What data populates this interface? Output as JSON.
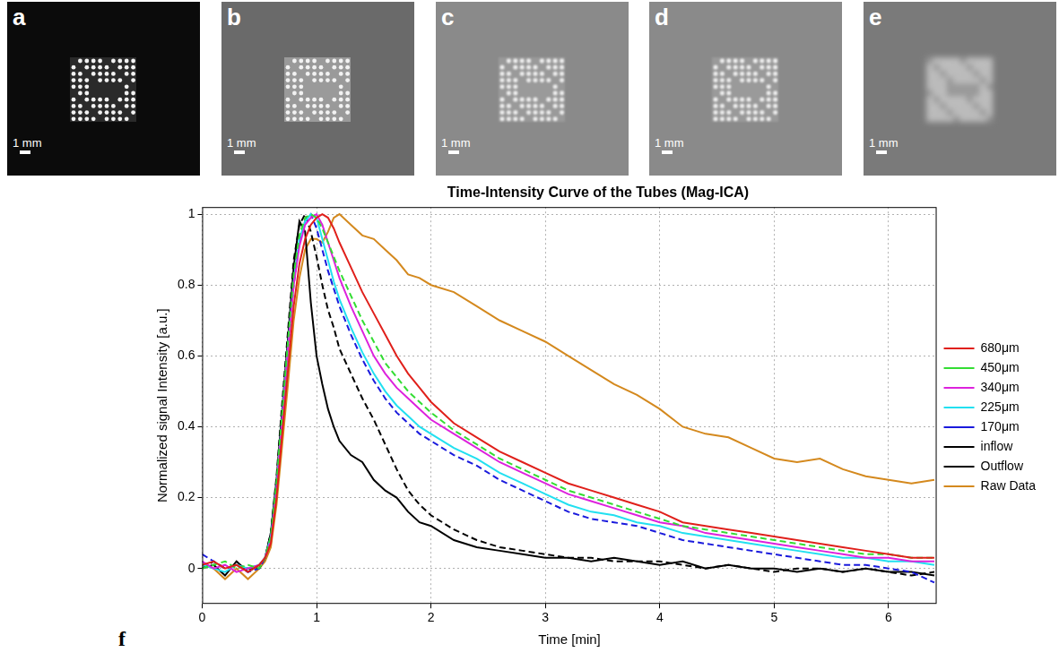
{
  "images": [
    {
      "label": "a",
      "scale_bar": "1 mm"
    },
    {
      "label": "b",
      "scale_bar": "1 mm"
    },
    {
      "label": "c",
      "scale_bar": "1 mm"
    },
    {
      "label": "d",
      "scale_bar": "1 mm"
    },
    {
      "label": "e",
      "scale_bar": "1 mm"
    }
  ],
  "chart_data": {
    "type": "line",
    "panel_label": "f",
    "title": "Time-Intensity Curve of the Tubes (Mag-ICA)",
    "x_label": "Time [min]",
    "y_label": "Normalized signal Intensity [a.u.]",
    "x": [
      0,
      0.1,
      0.2,
      0.3,
      0.4,
      0.5,
      0.55,
      0.6,
      0.65,
      0.7,
      0.75,
      0.8,
      0.85,
      0.9,
      0.95,
      1.0,
      1.05,
      1.1,
      1.15,
      1.2,
      1.3,
      1.4,
      1.5,
      1.6,
      1.7,
      1.8,
      1.9,
      2.0,
      2.2,
      2.4,
      2.6,
      2.8,
      3.0,
      3.2,
      3.4,
      3.6,
      3.8,
      4.0,
      4.2,
      4.4,
      4.6,
      4.8,
      5.0,
      5.2,
      5.4,
      5.6,
      5.8,
      6.0,
      6.2,
      6.4
    ],
    "series": [
      {
        "name": "680μm",
        "color": "#e0201b",
        "line_style": "solid",
        "values": [
          0.01,
          0.02,
          0.0,
          0.01,
          -0.01,
          0.01,
          0.03,
          0.07,
          0.2,
          0.38,
          0.56,
          0.74,
          0.86,
          0.93,
          0.97,
          0.99,
          1.0,
          0.99,
          0.96,
          0.92,
          0.85,
          0.78,
          0.72,
          0.66,
          0.6,
          0.55,
          0.51,
          0.47,
          0.41,
          0.37,
          0.33,
          0.3,
          0.27,
          0.24,
          0.22,
          0.2,
          0.18,
          0.16,
          0.13,
          0.12,
          0.11,
          0.1,
          0.09,
          0.08,
          0.07,
          0.06,
          0.05,
          0.04,
          0.03,
          0.03
        ]
      },
      {
        "name": "450μm",
        "color": "#33dd33",
        "line_style": "dashed",
        "values": [
          0.0,
          0.01,
          0.02,
          0.0,
          0.01,
          0.0,
          0.03,
          0.09,
          0.24,
          0.44,
          0.64,
          0.83,
          0.94,
          0.99,
          1.0,
          0.99,
          0.96,
          0.92,
          0.88,
          0.84,
          0.77,
          0.7,
          0.64,
          0.58,
          0.54,
          0.5,
          0.47,
          0.44,
          0.39,
          0.35,
          0.31,
          0.28,
          0.25,
          0.22,
          0.2,
          0.18,
          0.16,
          0.14,
          0.12,
          0.11,
          0.1,
          0.09,
          0.08,
          0.07,
          0.06,
          0.05,
          0.04,
          0.04,
          0.03,
          0.03
        ]
      },
      {
        "name": "340μm",
        "color": "#dd22dd",
        "line_style": "solid",
        "values": [
          0.02,
          0.0,
          0.01,
          -0.01,
          0.0,
          0.01,
          0.03,
          0.08,
          0.22,
          0.42,
          0.62,
          0.8,
          0.91,
          0.97,
          0.99,
          1.0,
          0.97,
          0.92,
          0.87,
          0.82,
          0.74,
          0.67,
          0.6,
          0.55,
          0.51,
          0.48,
          0.45,
          0.42,
          0.38,
          0.34,
          0.3,
          0.27,
          0.24,
          0.21,
          0.19,
          0.17,
          0.15,
          0.13,
          0.12,
          0.1,
          0.09,
          0.08,
          0.07,
          0.06,
          0.05,
          0.04,
          0.03,
          0.03,
          0.02,
          0.02
        ]
      },
      {
        "name": "225μm",
        "color": "#22e0f0",
        "line_style": "solid",
        "values": [
          0.01,
          0.0,
          -0.01,
          0.01,
          0.0,
          0.01,
          0.03,
          0.09,
          0.23,
          0.43,
          0.63,
          0.81,
          0.93,
          0.98,
          1.0,
          0.99,
          0.93,
          0.87,
          0.81,
          0.76,
          0.68,
          0.61,
          0.55,
          0.5,
          0.46,
          0.43,
          0.4,
          0.38,
          0.34,
          0.31,
          0.27,
          0.24,
          0.21,
          0.18,
          0.16,
          0.15,
          0.13,
          0.12,
          0.1,
          0.09,
          0.08,
          0.07,
          0.06,
          0.05,
          0.04,
          0.03,
          0.03,
          0.02,
          0.02,
          0.01
        ]
      },
      {
        "name": "170μm",
        "color": "#1a1adc",
        "line_style": "dashed",
        "values": [
          0.04,
          0.02,
          0.0,
          0.01,
          -0.01,
          0.0,
          0.03,
          0.08,
          0.22,
          0.42,
          0.62,
          0.8,
          0.92,
          0.98,
          1.0,
          0.96,
          0.9,
          0.84,
          0.79,
          0.74,
          0.66,
          0.59,
          0.53,
          0.48,
          0.44,
          0.41,
          0.38,
          0.36,
          0.32,
          0.29,
          0.25,
          0.22,
          0.19,
          0.16,
          0.14,
          0.13,
          0.12,
          0.1,
          0.08,
          0.07,
          0.06,
          0.05,
          0.04,
          0.03,
          0.02,
          0.01,
          0.01,
          0.0,
          -0.01,
          -0.04
        ]
      },
      {
        "name": "inflow",
        "color": "#000000",
        "line_style": "solid",
        "values": [
          0.0,
          0.01,
          -0.02,
          0.02,
          -0.01,
          0.01,
          0.03,
          0.1,
          0.25,
          0.45,
          0.65,
          0.85,
          0.98,
          0.95,
          0.75,
          0.6,
          0.52,
          0.45,
          0.4,
          0.36,
          0.32,
          0.3,
          0.25,
          0.22,
          0.2,
          0.16,
          0.13,
          0.12,
          0.08,
          0.06,
          0.05,
          0.04,
          0.03,
          0.03,
          0.02,
          0.03,
          0.02,
          0.01,
          0.02,
          0.0,
          0.01,
          0.0,
          0.0,
          -0.01,
          0.0,
          -0.01,
          0.0,
          -0.01,
          -0.01,
          -0.02
        ]
      },
      {
        "name": "Outflow",
        "color": "#000000",
        "line_style": "dashed",
        "values": [
          0.0,
          0.02,
          0.0,
          0.01,
          0.0,
          0.0,
          0.03,
          0.1,
          0.26,
          0.47,
          0.67,
          0.87,
          0.97,
          1.0,
          0.95,
          0.88,
          0.8,
          0.73,
          0.68,
          0.62,
          0.55,
          0.48,
          0.42,
          0.35,
          0.28,
          0.22,
          0.18,
          0.15,
          0.11,
          0.08,
          0.06,
          0.05,
          0.04,
          0.03,
          0.03,
          0.02,
          0.02,
          0.02,
          0.01,
          0.0,
          0.01,
          0.0,
          -0.01,
          0.0,
          0.0,
          -0.01,
          0.0,
          -0.01,
          -0.02,
          -0.01
        ]
      },
      {
        "name": "Raw Data",
        "color": "#d4891e",
        "line_style": "solid",
        "values": [
          0.01,
          0.0,
          -0.03,
          0.0,
          -0.03,
          0.0,
          0.02,
          0.06,
          0.18,
          0.35,
          0.52,
          0.7,
          0.82,
          0.9,
          0.93,
          0.93,
          0.92,
          0.95,
          0.99,
          1.0,
          0.97,
          0.94,
          0.93,
          0.9,
          0.87,
          0.83,
          0.82,
          0.8,
          0.78,
          0.74,
          0.7,
          0.67,
          0.64,
          0.6,
          0.56,
          0.52,
          0.49,
          0.45,
          0.4,
          0.38,
          0.37,
          0.34,
          0.31,
          0.3,
          0.31,
          0.28,
          0.26,
          0.25,
          0.24,
          0.25
        ]
      }
    ],
    "xlim": [
      0,
      6.42
    ],
    "xticks": [
      0,
      1,
      2,
      3,
      4,
      5,
      6
    ],
    "ylim": [
      -0.1,
      1.02
    ],
    "yticks": [
      0,
      0.2,
      0.4,
      0.6,
      0.8,
      1
    ],
    "grid": true,
    "legend": "right"
  }
}
